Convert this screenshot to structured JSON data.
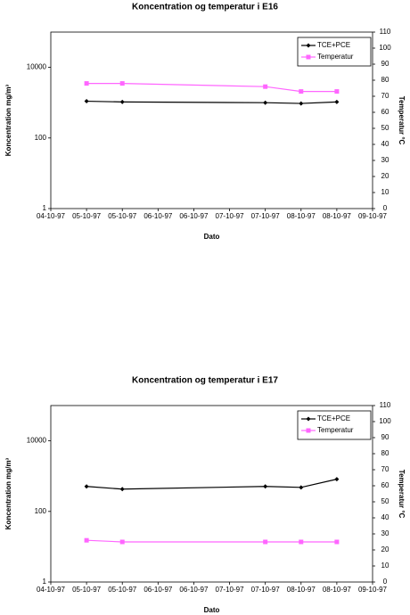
{
  "chart_data": [
    {
      "type": "line",
      "title": "Koncentration og temperatur i E16",
      "x_label": "Dato",
      "y_label": "Koncentration mg/m³",
      "y2_label": "Temperatur °C",
      "x": [
        5.0,
        5.5,
        7.5,
        8.0,
        8.5
      ],
      "xlim": [
        4.5,
        9.0
      ],
      "xticks": [
        {
          "value": 4.5,
          "label": "04-10-97"
        },
        {
          "value": 5.0,
          "label": "05-10-97"
        },
        {
          "value": 5.5,
          "label": "05-10-97"
        },
        {
          "value": 6.0,
          "label": "06-10-97"
        },
        {
          "value": 6.5,
          "label": "06-10-97"
        },
        {
          "value": 7.0,
          "label": "07-10-97"
        },
        {
          "value": 7.5,
          "label": "07-10-97"
        },
        {
          "value": 8.0,
          "label": "08-10-97"
        },
        {
          "value": 8.5,
          "label": "08-10-97"
        },
        {
          "value": 9.0,
          "label": "09-10-97"
        }
      ],
      "ylim": [
        1,
        100000
      ],
      "yticks": [
        1,
        100,
        10000
      ],
      "y_scale": "log",
      "y2lim": [
        0,
        110
      ],
      "y2ticks": [
        0,
        10,
        20,
        30,
        40,
        50,
        60,
        70,
        80,
        90,
        100,
        110
      ],
      "legend": "upper right",
      "series": [
        {
          "name": "TCE+PCE",
          "color": "#000000",
          "marker": "diamond",
          "values": [
            1100,
            1050,
            1000,
            950,
            1050
          ]
        },
        {
          "name": "Temperatur",
          "color": "#ff66ff",
          "marker": "square",
          "axis": "y2",
          "values": [
            78,
            78,
            76,
            73,
            73
          ]
        }
      ]
    },
    {
      "type": "line",
      "title": "Koncentration og temperatur i E17",
      "x_label": "Dato",
      "y_label": "Koncentration mg/m³",
      "y2_label": "Temperatur °C",
      "x": [
        5.0,
        5.5,
        7.5,
        8.0,
        8.5
      ],
      "xlim": [
        4.5,
        9.0
      ],
      "xticks": [
        {
          "value": 4.5,
          "label": "04-10-97"
        },
        {
          "value": 5.0,
          "label": "05-10-97"
        },
        {
          "value": 5.5,
          "label": "05-10-97"
        },
        {
          "value": 6.0,
          "label": "06-10-97"
        },
        {
          "value": 6.5,
          "label": "06-10-97"
        },
        {
          "value": 7.0,
          "label": "07-10-97"
        },
        {
          "value": 7.5,
          "label": "07-10-97"
        },
        {
          "value": 8.0,
          "label": "08-10-97"
        },
        {
          "value": 8.5,
          "label": "08-10-97"
        },
        {
          "value": 9.0,
          "label": "09-10-97"
        }
      ],
      "ylim": [
        1,
        100000
      ],
      "yticks": [
        1,
        100,
        10000
      ],
      "y_scale": "log",
      "y2lim": [
        0,
        110
      ],
      "y2ticks": [
        0,
        10,
        20,
        30,
        40,
        50,
        60,
        70,
        80,
        90,
        100,
        110
      ],
      "legend": "upper right",
      "series": [
        {
          "name": "TCE+PCE",
          "color": "#000000",
          "marker": "diamond",
          "values": [
            510,
            430,
            510,
            480,
            820
          ]
        },
        {
          "name": "Temperatur",
          "color": "#ff66ff",
          "marker": "square",
          "axis": "y2",
          "values": [
            26,
            25,
            25,
            25,
            25
          ]
        }
      ]
    }
  ]
}
